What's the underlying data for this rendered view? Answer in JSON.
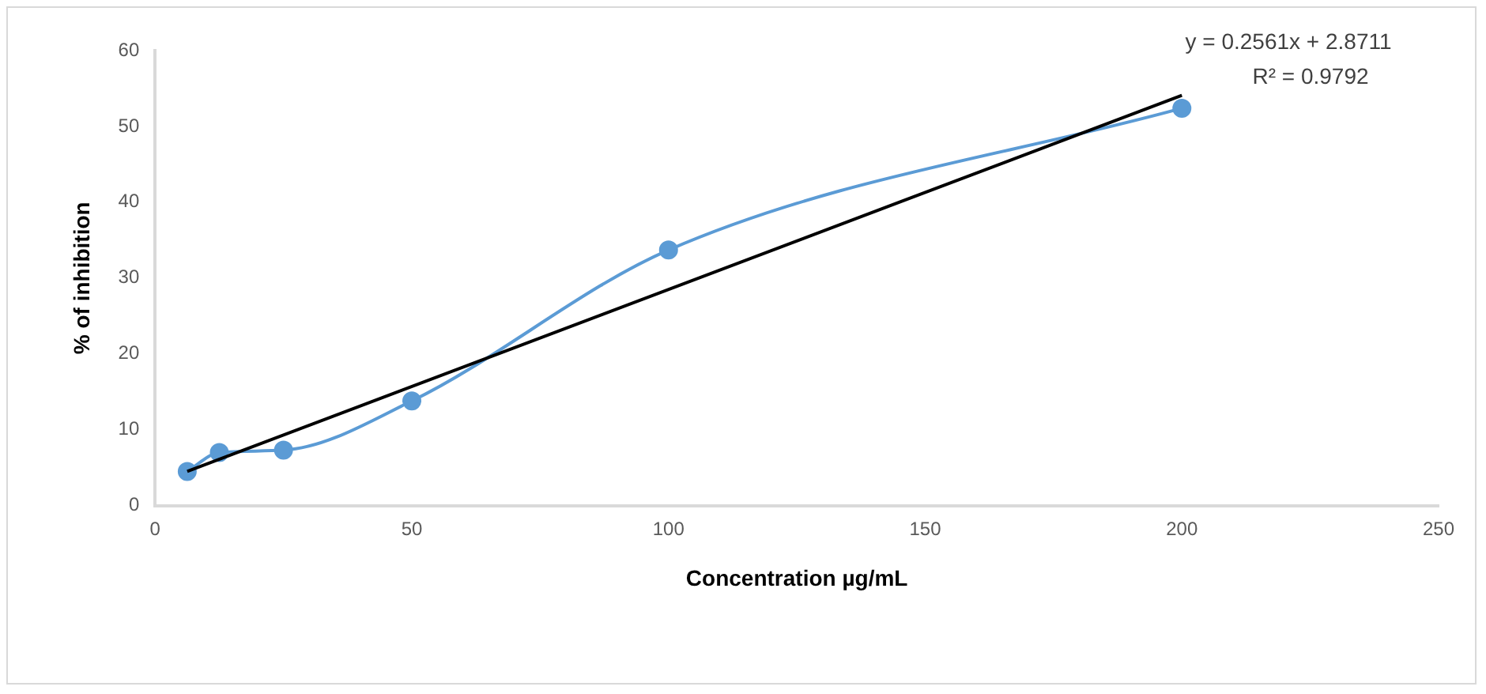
{
  "chart_data": {
    "type": "scatter",
    "xlabel": "Concentration µg/mL",
    "ylabel": "% of inhibition",
    "xlim": [
      0,
      250
    ],
    "xticks": [
      0,
      50,
      100,
      150,
      200,
      250
    ],
    "ylim": [
      0,
      60
    ],
    "yticks": [
      0,
      10,
      20,
      30,
      40,
      50,
      60
    ],
    "grid": false,
    "legend": false,
    "marker": "circle",
    "series": [
      {
        "type": "line",
        "color": "#5b9bd5",
        "x": [
          6.25,
          12.5,
          25,
          50,
          100,
          200
        ],
        "values": [
          4.5,
          7,
          7.3,
          13.8,
          33.7,
          52.4
        ]
      },
      {
        "type": "line",
        "color": "#000000",
        "marker": "none",
        "x": [
          6.25,
          200
        ],
        "values": [
          4.5,
          54.1
        ]
      }
    ],
    "annotations": [
      "y = 0.2561x + 2.8711",
      "R² = 0.9792"
    ]
  }
}
